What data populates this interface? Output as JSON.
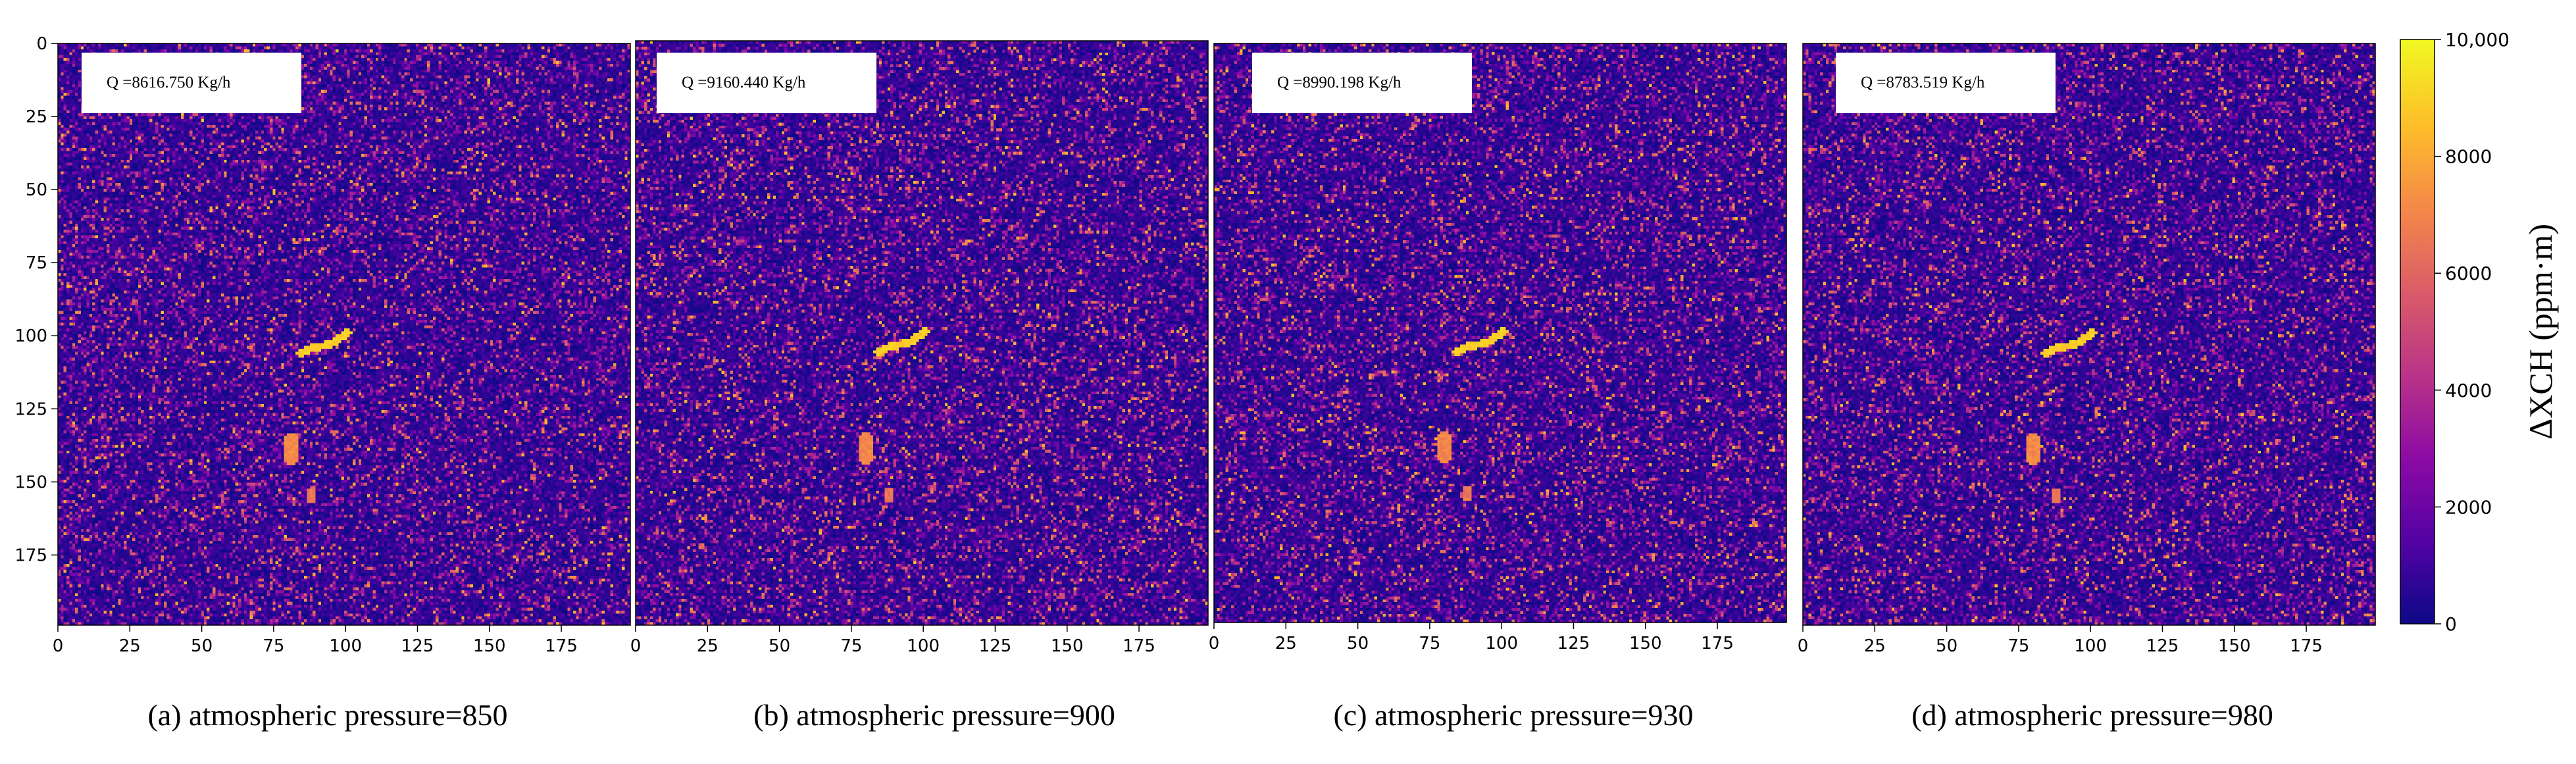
{
  "chart_data": [
    {
      "type": "heatmap",
      "panel": "a",
      "caption": "(a) atmospheric pressure=850",
      "annotation": "Q =8616.750 Kg/h",
      "x_ticks": [
        "0",
        "25",
        "50",
        "75",
        "100",
        "125",
        "150",
        "175"
      ],
      "y_ticks": [
        "0",
        "25",
        "50",
        "75",
        "100",
        "125",
        "150",
        "175"
      ],
      "xlim": [
        0,
        199
      ],
      "ylim": [
        199,
        0
      ],
      "plume_blobs": [
        {
          "kind": "streak",
          "points": [
            [
              84,
              106
            ],
            [
              89,
              104
            ],
            [
              95,
              103
            ],
            [
              99,
              100
            ],
            [
              101,
              99
            ]
          ],
          "value": 9300
        },
        {
          "kind": "blob",
          "x": 81,
          "y": 139,
          "rx": 3,
          "ry": 5.5,
          "value": 7600
        },
        {
          "kind": "blob",
          "x": 88,
          "y": 155,
          "rx": 1.8,
          "ry": 3,
          "value": 7000
        }
      ]
    },
    {
      "type": "heatmap",
      "panel": "b",
      "caption": "(b) atmospheric pressure=900",
      "annotation": "Q =9160.440 Kg/h",
      "x_ticks": [
        "0",
        "25",
        "50",
        "75",
        "100",
        "125",
        "150",
        "175"
      ],
      "y_ticks": [],
      "xlim": [
        0,
        199
      ],
      "ylim": [
        199,
        0
      ],
      "plume_blobs": [
        {
          "kind": "streak",
          "points": [
            [
              84,
              106
            ],
            [
              89,
              104
            ],
            [
              95,
              103
            ],
            [
              99,
              100
            ],
            [
              101,
              99
            ]
          ],
          "value": 9300
        },
        {
          "kind": "blob",
          "x": 80,
          "y": 139,
          "rx": 3,
          "ry": 5.5,
          "value": 7600
        },
        {
          "kind": "blob",
          "x": 88,
          "y": 155,
          "rx": 1.8,
          "ry": 3,
          "value": 7000
        }
      ]
    },
    {
      "type": "heatmap",
      "panel": "c",
      "caption": "(c) atmospheric pressure=930",
      "annotation": "Q =8990.198 Kg/h",
      "x_ticks": [
        "0",
        "25",
        "50",
        "75",
        "100",
        "125",
        "150",
        "175"
      ],
      "y_ticks": [],
      "xlim": [
        0,
        199
      ],
      "ylim": [
        199,
        0
      ],
      "plume_blobs": [
        {
          "kind": "streak",
          "points": [
            [
              84,
              106
            ],
            [
              89,
              104
            ],
            [
              95,
              103
            ],
            [
              99,
              100
            ],
            [
              101,
              99
            ]
          ],
          "value": 9300
        },
        {
          "kind": "blob",
          "x": 80,
          "y": 139,
          "rx": 3,
          "ry": 5.5,
          "value": 7600
        },
        {
          "kind": "blob",
          "x": 88,
          "y": 155,
          "rx": 1.8,
          "ry": 3,
          "value": 7000
        }
      ]
    },
    {
      "type": "heatmap",
      "panel": "d",
      "caption": "(d) atmospheric pressure=980",
      "annotation": "Q =8783.519 Kg/h",
      "x_ticks": [
        "0",
        "25",
        "50",
        "75",
        "100",
        "125",
        "150",
        "175"
      ],
      "y_ticks": [],
      "xlim": [
        0,
        199
      ],
      "ylim": [
        199,
        0
      ],
      "plume_blobs": [
        {
          "kind": "streak",
          "points": [
            [
              84,
              106
            ],
            [
              89,
              104
            ],
            [
              95,
              103
            ],
            [
              99,
              100
            ],
            [
              101,
              99
            ]
          ],
          "value": 9300
        },
        {
          "kind": "blob",
          "x": 80,
          "y": 139,
          "rx": 3,
          "ry": 5.5,
          "value": 7600
        },
        {
          "kind": "blob",
          "x": 88,
          "y": 155,
          "rx": 1.8,
          "ry": 3,
          "value": 7000
        }
      ]
    }
  ],
  "colorbar": {
    "label": "ΔXCH (ppm·m)",
    "ticks": [
      "0",
      "2000",
      "4000",
      "6000",
      "8000",
      "10,000"
    ],
    "tick_values": [
      0,
      2000,
      4000,
      6000,
      8000,
      10000
    ],
    "range": [
      0,
      10000
    ],
    "colormap": "plasma",
    "colormap_stops": [
      "#0d0887",
      "#5302a3",
      "#8b0aa5",
      "#b83289",
      "#db5c68",
      "#f48849",
      "#febd2a",
      "#f0f921"
    ]
  },
  "background_value_approx": 800
}
